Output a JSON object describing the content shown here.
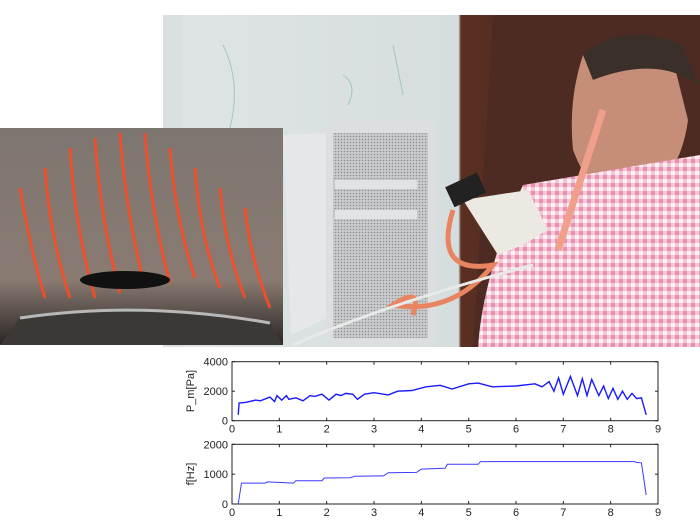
{
  "figure": {
    "photos": [
      {
        "subject": "man playing instrument with mouthpiece and camera rig next to computer tower"
      },
      {
        "subject": "close-up of lips with red projected stripe pattern"
      }
    ]
  },
  "colors": {
    "line_pressure": "#1a1aff",
    "line_frequency": "#3a3aff",
    "axes": "#222222"
  },
  "chart_data": [
    {
      "type": "line",
      "ylabel": "P_m[Pa]",
      "ylabel_main": "P",
      "ylabel_sub": "m",
      "ylabel_unit": "[Pa]",
      "xlim": [
        0,
        9
      ],
      "ylim": [
        0,
        4000
      ],
      "xticks": [
        "0",
        "1",
        "2",
        "3",
        "4",
        "5",
        "6",
        "7",
        "8",
        "9"
      ],
      "yticks": [
        "0",
        "2000",
        "4000"
      ],
      "grid": false,
      "x": [
        0.13,
        0.15,
        0.3,
        0.5,
        0.6,
        0.8,
        0.9,
        0.95,
        1.05,
        1.15,
        1.2,
        1.35,
        1.5,
        1.65,
        1.75,
        1.9,
        2.05,
        2.2,
        2.3,
        2.4,
        2.55,
        2.65,
        2.8,
        3.0,
        3.3,
        3.5,
        3.8,
        4.1,
        4.4,
        4.65,
        5.0,
        5.2,
        5.5,
        6.0,
        6.4,
        6.55,
        6.7,
        6.8,
        6.9,
        7.0,
        7.15,
        7.3,
        7.4,
        7.5,
        7.6,
        7.75,
        7.85,
        7.95,
        8.05,
        8.15,
        8.25,
        8.35,
        8.45,
        8.55,
        8.65,
        8.75
      ],
      "y": [
        400,
        1200,
        1250,
        1400,
        1350,
        1600,
        1300,
        1700,
        1400,
        1700,
        1450,
        1550,
        1350,
        1700,
        1650,
        1800,
        1400,
        1800,
        1700,
        1850,
        1800,
        1450,
        1800,
        1900,
        1750,
        2000,
        2050,
        2300,
        2400,
        2150,
        2500,
        2550,
        2300,
        2350,
        2500,
        2300,
        2650,
        2000,
        2900,
        1800,
        3000,
        1700,
        2850,
        1700,
        2800,
        1700,
        2350,
        1500,
        2200,
        1450,
        2000,
        1450,
        1850,
        1500,
        1550,
        400
      ]
    },
    {
      "type": "line",
      "ylabel": "f[Hz]",
      "xlim": [
        0,
        9
      ],
      "ylim": [
        0,
        2000
      ],
      "xticks": [
        "0",
        "1",
        "2",
        "3",
        "4",
        "5",
        "6",
        "7",
        "8",
        "9"
      ],
      "yticks": [
        "0",
        "1000",
        "2000"
      ],
      "grid": false,
      "x": [
        0.13,
        0.2,
        0.7,
        0.75,
        1.3,
        1.35,
        1.9,
        1.95,
        2.5,
        2.6,
        3.2,
        3.3,
        3.9,
        4.0,
        4.5,
        4.55,
        5.2,
        5.25,
        8.5,
        8.55,
        8.65,
        8.75
      ],
      "y": [
        0,
        700,
        700,
        740,
        700,
        780,
        780,
        870,
        880,
        930,
        940,
        1050,
        1060,
        1170,
        1200,
        1330,
        1330,
        1420,
        1420,
        1390,
        1380,
        300
      ]
    }
  ]
}
